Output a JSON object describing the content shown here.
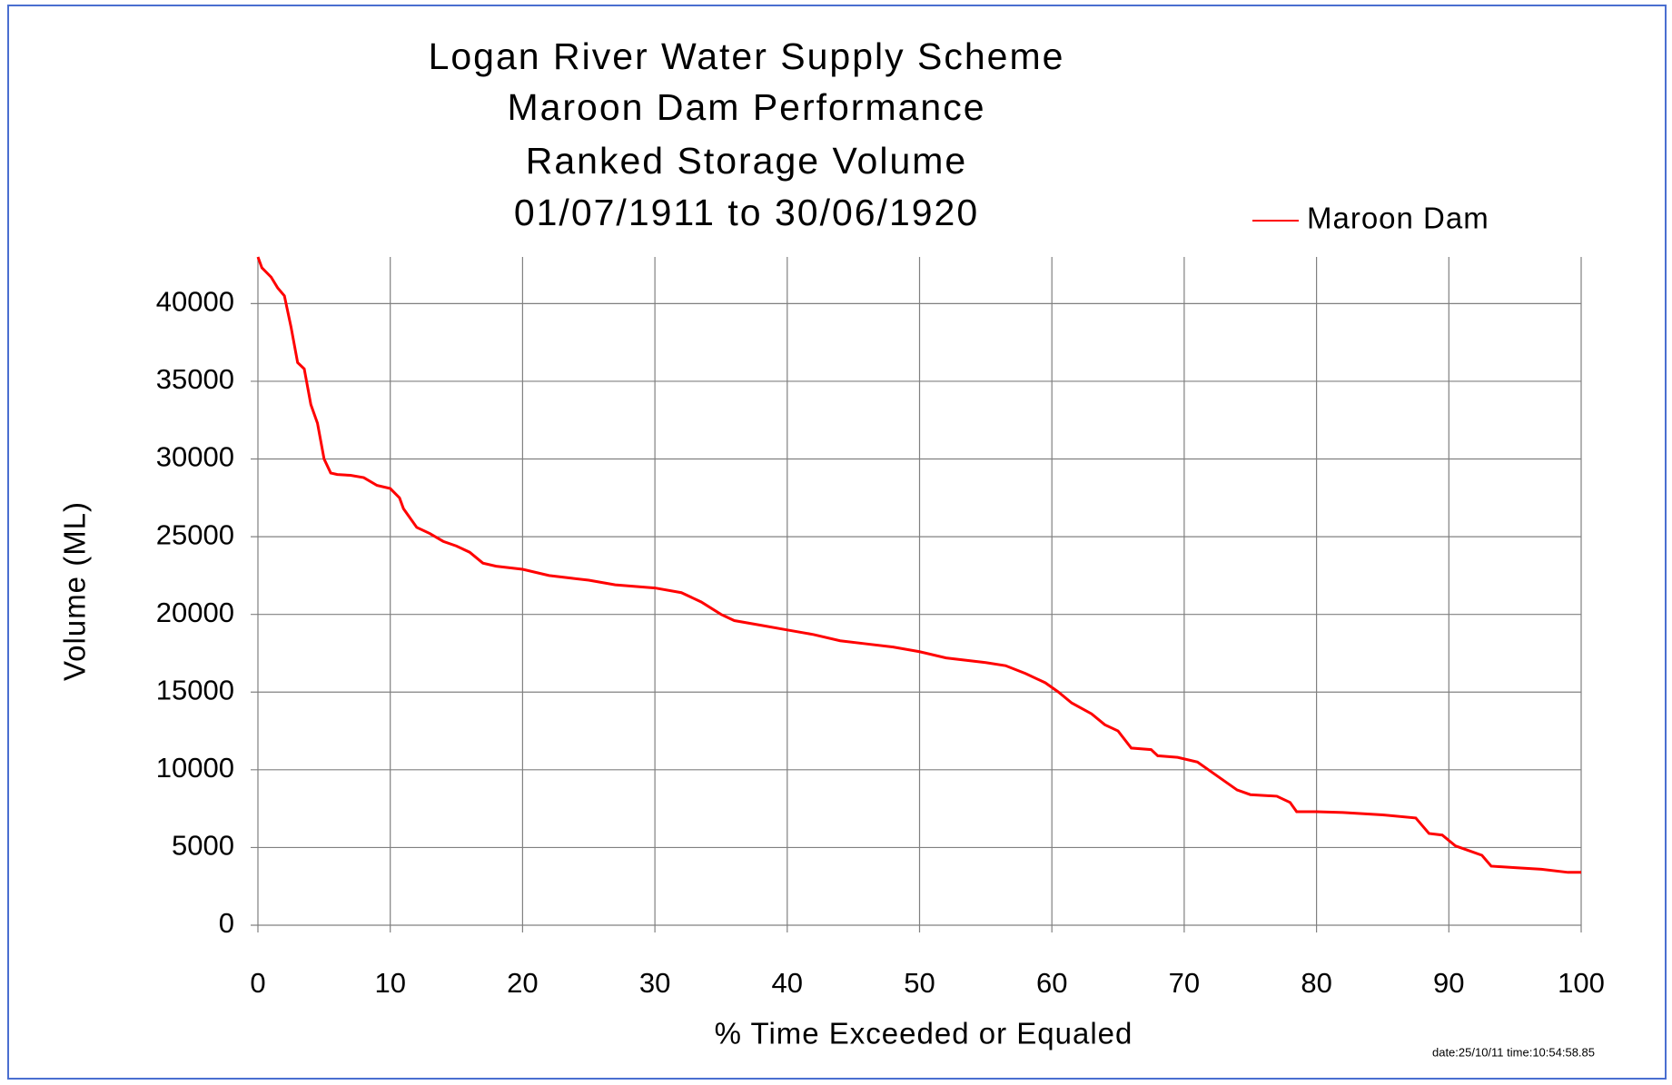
{
  "chart_data": {
    "type": "line",
    "title": [
      "Logan River Water Supply Scheme",
      "Maroon Dam Performance",
      "Ranked Storage Volume",
      "01/07/1911 to 30/06/1920"
    ],
    "x_label": "% Time Exceeded or Equaled",
    "y_label": "Volume (ML)",
    "footer": "date:25/10/11 time:10:54:58.85",
    "legend": "upper right",
    "grid": true,
    "xlim": [
      0,
      100
    ],
    "xticks": [
      0,
      10,
      20,
      30,
      40,
      50,
      60,
      70,
      80,
      90,
      100
    ],
    "ylim": [
      0,
      43000
    ],
    "yticks": [
      0,
      5000,
      10000,
      15000,
      20000,
      25000,
      30000,
      35000,
      40000
    ],
    "x": [
      0,
      0.3,
      1,
      1.5,
      2,
      2.5,
      3,
      3.5,
      4,
      4.5,
      5,
      5.5,
      6,
      7,
      8,
      9,
      10,
      10.7,
      11,
      12,
      13,
      14,
      15,
      16,
      17,
      18,
      20,
      22,
      25,
      27,
      30,
      32,
      33.5,
      35,
      36,
      38,
      40,
      42,
      44,
      46,
      48,
      50,
      52,
      55,
      56.5,
      58,
      59.5,
      60.5,
      61.5,
      63,
      64,
      65,
      66,
      67.5,
      68,
      69.5,
      71,
      72,
      73,
      74,
      75,
      77,
      78,
      78.5,
      80,
      82,
      85,
      87.5,
      88,
      88.5,
      89.5,
      90.5,
      91.5,
      92.5,
      93.2,
      95,
      97,
      99,
      100
    ],
    "series": [
      {
        "name": "Maroon Dam",
        "color": "#ff0000",
        "values": [
          43000,
          42300,
          41700,
          41000,
          40500,
          38500,
          36200,
          35800,
          33500,
          32300,
          30000,
          29100,
          29000,
          28950,
          28800,
          28300,
          28100,
          27500,
          26800,
          25600,
          25200,
          24700,
          24400,
          24000,
          23300,
          23100,
          22900,
          22500,
          22200,
          21900,
          21700,
          21400,
          20800,
          20000,
          19600,
          19300,
          19000,
          18700,
          18300,
          18100,
          17900,
          17600,
          17200,
          16900,
          16700,
          16200,
          15600,
          15000,
          14300,
          13600,
          12900,
          12500,
          11400,
          11300,
          10900,
          10800,
          10500,
          9900,
          9300,
          8700,
          8400,
          8300,
          7900,
          7300,
          7300,
          7250,
          7100,
          6900,
          6400,
          5900,
          5800,
          5100,
          4800,
          4500,
          3800,
          3700,
          3600,
          3400,
          3400
        ]
      }
    ]
  }
}
